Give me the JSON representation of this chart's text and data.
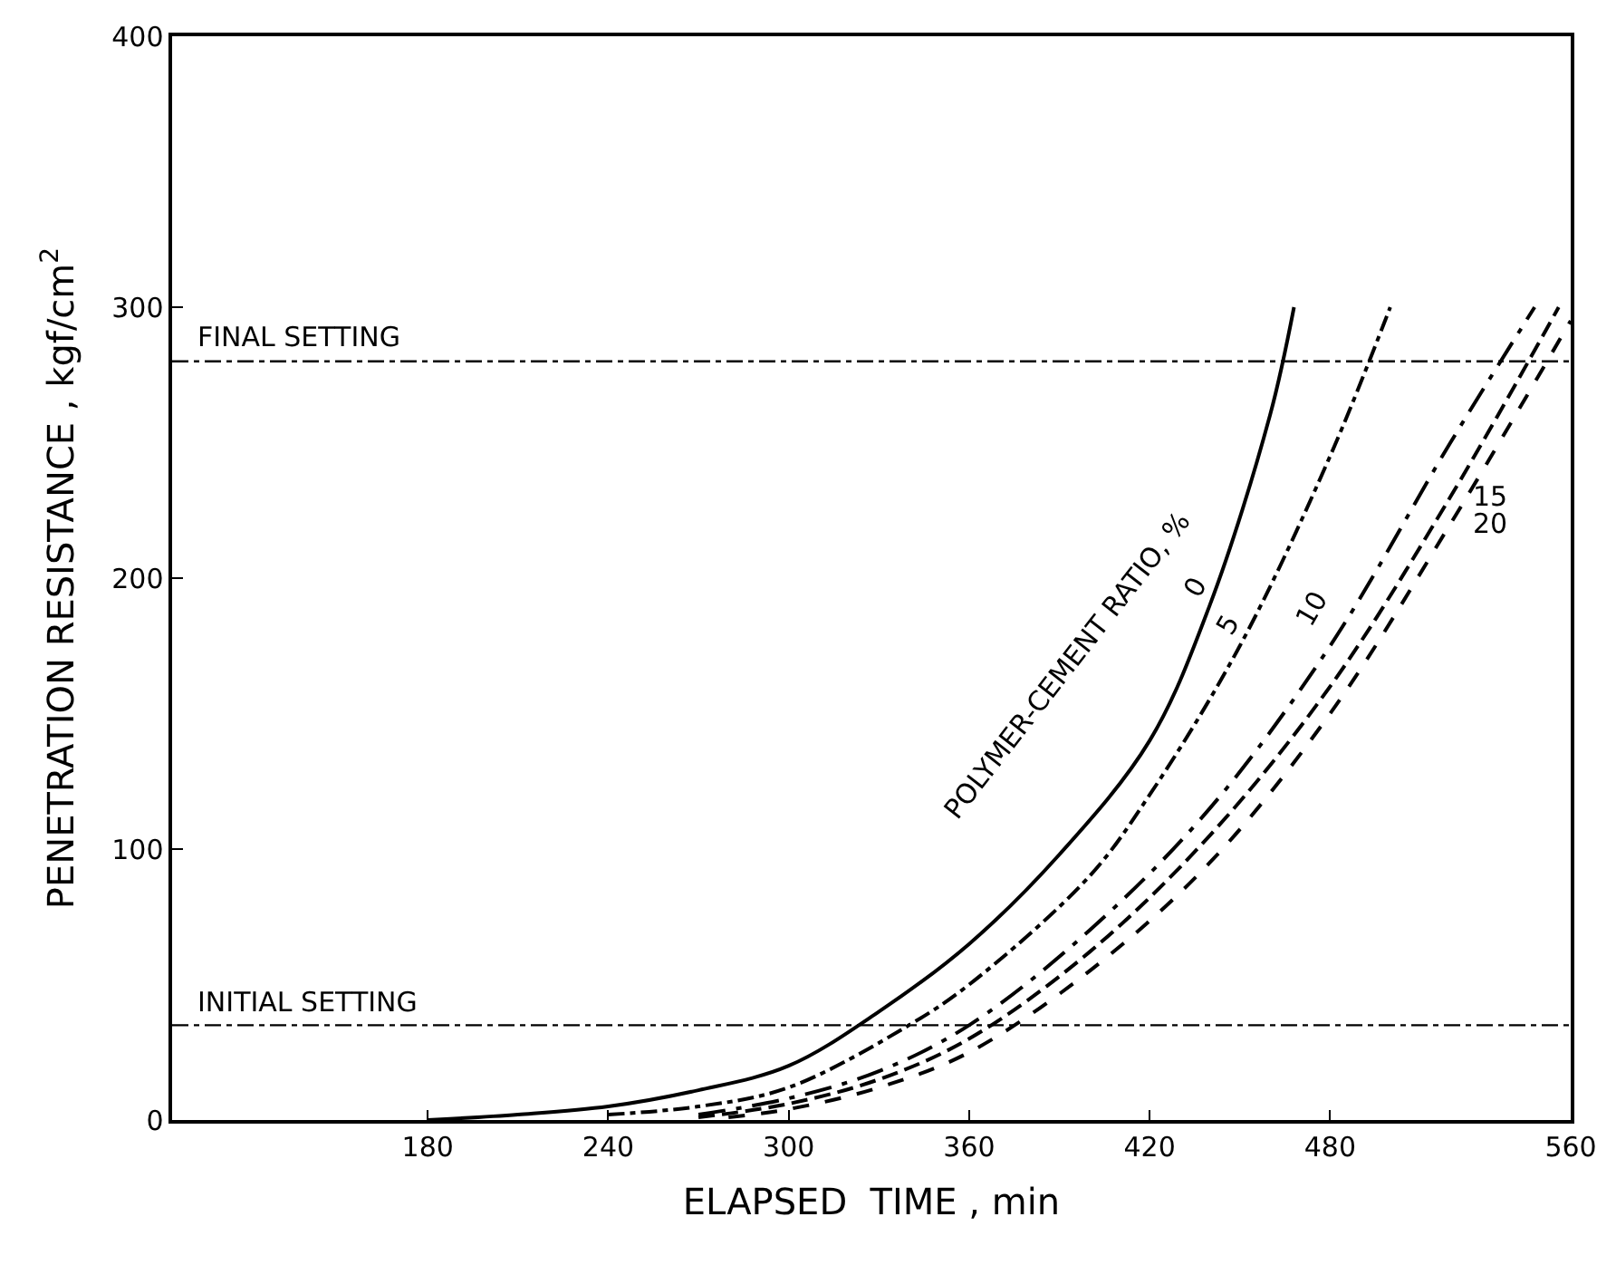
{
  "chart_data": {
    "type": "line",
    "xlabel": "ELAPSED  TIME , min",
    "ylabel": "PENETRATION RESISTANCE , kgf/cm$^{2}$",
    "xlim": [
      95,
      560
    ],
    "xticks": [
      180,
      240,
      300,
      360,
      420,
      480,
      560
    ],
    "ylim": [
      0,
      400
    ],
    "yticks": [
      0,
      100,
      200,
      300,
      400
    ],
    "legend": false,
    "marker": "none",
    "series": [
      {
        "name": "0",
        "color": "#000000",
        "line_style": "solid",
        "x": [
          180,
          210,
          240,
          270,
          300,
          330,
          360,
          390,
          420,
          440,
          460,
          468
        ],
        "values": [
          0,
          2,
          5,
          11,
          20,
          40,
          65,
          98,
          140,
          190,
          260,
          300
        ]
      },
      {
        "name": "5",
        "color": "#000000",
        "line_style": "dashdot",
        "x": [
          240,
          270,
          300,
          340,
          360,
          400,
          420,
          450,
          480,
          500
        ],
        "values": [
          2,
          5,
          12,
          35,
          50,
          90,
          120,
          175,
          245,
          300
        ]
      },
      {
        "name": "10",
        "color": "#000000",
        "line_style": "longdashdot",
        "x": [
          270,
          300,
          330,
          360,
          400,
          440,
          480,
          520,
          548
        ],
        "values": [
          2,
          8,
          18,
          35,
          70,
          115,
          175,
          250,
          300
        ]
      },
      {
        "name": "15",
        "color": "#000000",
        "line_style": "longdash",
        "x": [
          270,
          300,
          330,
          360,
          400,
          440,
          480,
          520,
          556
        ],
        "values": [
          1,
          6,
          15,
          30,
          62,
          105,
          160,
          230,
          300
        ]
      },
      {
        "name": "20",
        "color": "#000000",
        "line_style": "dashed",
        "x": [
          280,
          300,
          330,
          360,
          400,
          440,
          480,
          520,
          560
        ],
        "values": [
          1,
          4,
          12,
          25,
          55,
          95,
          150,
          220,
          295
        ]
      }
    ],
    "ref_lines": [
      {
        "axis": "y",
        "value": 280,
        "label": "FINAL SETTING",
        "color": "#000000",
        "line_style": "dashdot"
      },
      {
        "axis": "y",
        "value": 35,
        "label": "INITIAL SETTING",
        "color": "#000000",
        "line_style": "dashdot"
      }
    ],
    "annotations": [
      "POLYMER-CEMENT RATIO, %"
    ]
  }
}
